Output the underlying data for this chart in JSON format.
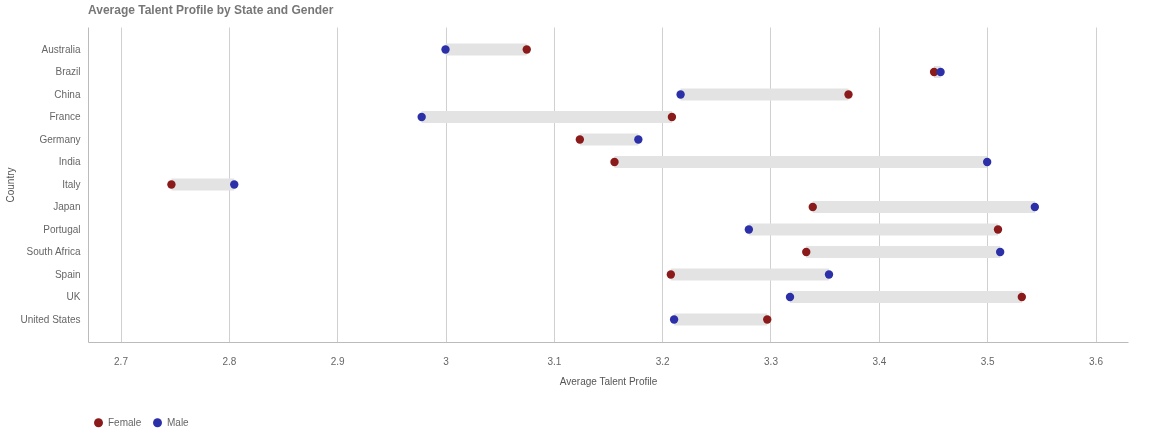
{
  "chart_data": {
    "type": "scatter",
    "title": "Average Talent Profile by State and Gender",
    "xlabel": "Average Talent Profile",
    "ylabel": "Country",
    "orientation": "horizontal",
    "categories": [
      "Australia",
      "Brazil",
      "China",
      "France",
      "Germany",
      "India",
      "Italy",
      "Japan",
      "Portugal",
      "South Africa",
      "Spain",
      "UK",
      "United States"
    ],
    "series": [
      {
        "name": "Female",
        "color": "#8b1a1a",
        "values": [
          3.075,
          3.451,
          3.372,
          3.209,
          3.124,
          3.156,
          2.747,
          3.339,
          3.51,
          3.333,
          3.208,
          3.532,
          3.297
        ]
      },
      {
        "name": "Male",
        "color": "#2b2fa8",
        "values": [
          3.0,
          3.457,
          3.217,
          2.978,
          3.178,
          3.5,
          2.805,
          3.544,
          3.28,
          3.512,
          3.354,
          3.318,
          3.211
        ]
      }
    ],
    "xlim": [
      2.67,
      3.63
    ],
    "xticks": [
      2.7,
      2.8,
      2.9,
      3,
      3.1,
      3.2,
      3.3,
      3.4,
      3.5,
      3.6
    ],
    "grid": "x",
    "legend": "bottom left",
    "marker": "circle"
  }
}
